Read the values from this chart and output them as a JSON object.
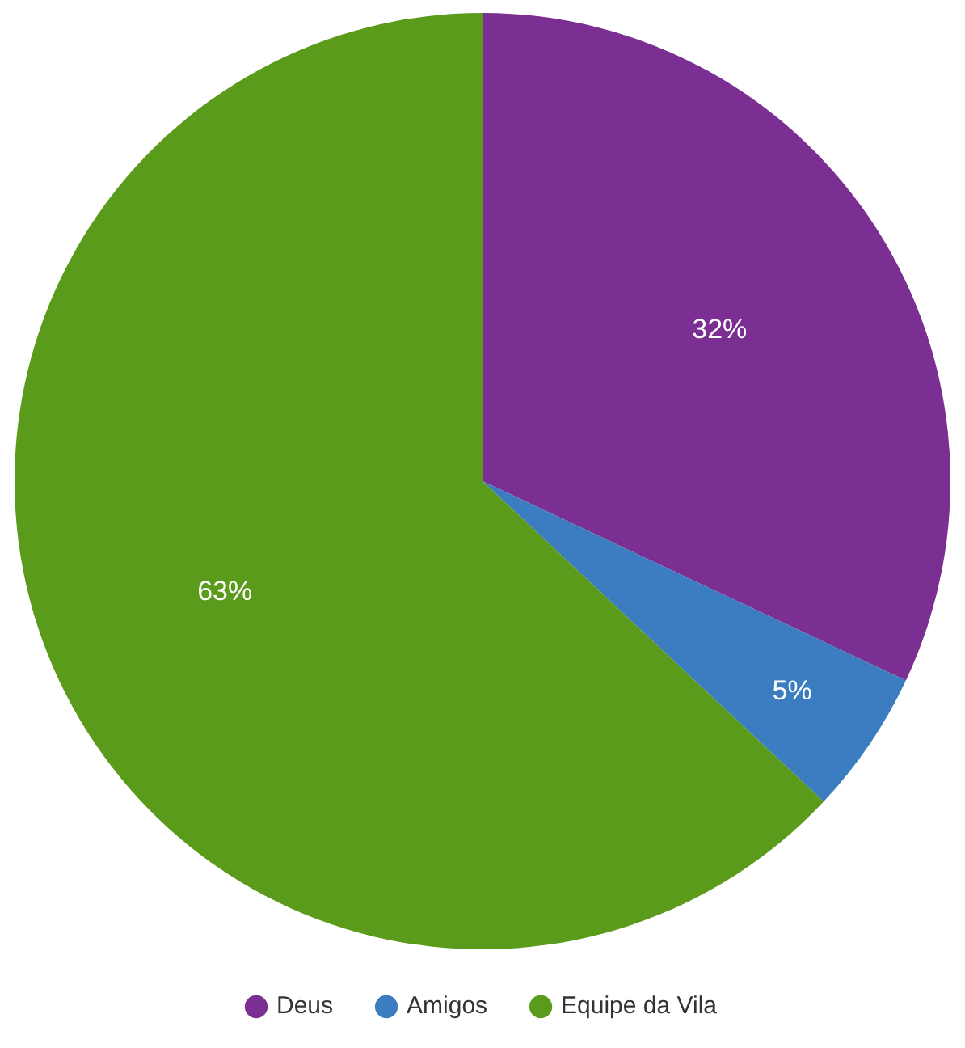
{
  "chart_data": {
    "type": "pie",
    "categories": [
      "Deus",
      "Amigos",
      "Equipe da Vila"
    ],
    "values": [
      32,
      5,
      63
    ],
    "colors": [
      "#7b2f92",
      "#3b7dc0",
      "#5b9b1b"
    ],
    "value_labels": [
      "32%",
      "5%",
      "63%"
    ],
    "legend": "bottom"
  }
}
